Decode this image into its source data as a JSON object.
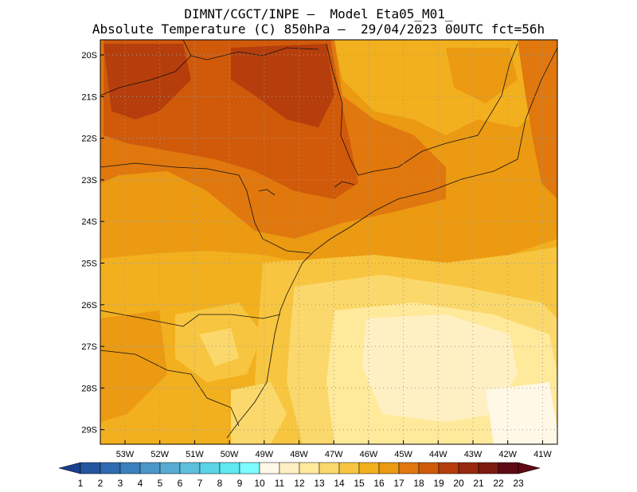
{
  "header": {
    "line1": "DIMNT/CGCT/INPE –  Model Eta05_M01_",
    "line2": "Absolute Temperature (C) 850hPa –  29/04/2023 00UTC fct=56h"
  },
  "map": {
    "lat_labels": [
      "20S",
      "21S",
      "22S",
      "23S",
      "24S",
      "25S",
      "26S",
      "27S",
      "28S",
      "29S"
    ],
    "lon_labels": [
      "53W",
      "52W",
      "51W",
      "50W",
      "49W",
      "48W",
      "47W",
      "46W",
      "45W",
      "44W",
      "43W",
      "42W",
      "41W"
    ]
  },
  "colorbar": {
    "labels": [
      "1",
      "2",
      "3",
      "4",
      "5",
      "6",
      "7",
      "8",
      "9",
      "10",
      "11",
      "12",
      "13",
      "14",
      "15",
      "16",
      "17",
      "18",
      "19",
      "20",
      "21",
      "22",
      "23"
    ],
    "colors": [
      "#1c3f8c",
      "#24559f",
      "#2e6bb0",
      "#3a80be",
      "#4a96c9",
      "#57abd3",
      "#5cc0dc",
      "#5ad4e6",
      "#5ee8ef",
      "#7cfcff",
      "#fff8e6",
      "#fff0c4",
      "#ffe99b",
      "#fbd86b",
      "#f7c540",
      "#f2b01e",
      "#eb9a12",
      "#e0780e",
      "#d05a0a",
      "#b63e0c",
      "#98280e",
      "#7d1a10",
      "#5e0a14",
      "#5e0a14"
    ]
  }
}
